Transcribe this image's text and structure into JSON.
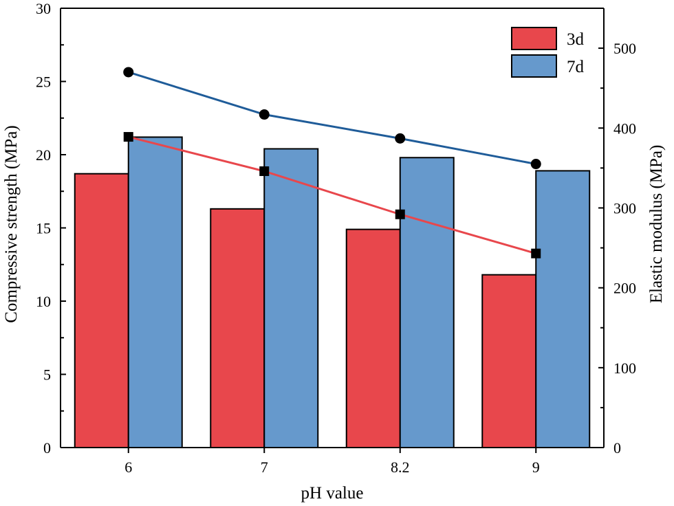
{
  "chart_data": {
    "type": "bar",
    "title": "",
    "categories": [
      "6",
      "7",
      "8.2",
      "9"
    ],
    "xlabel": "pH value",
    "ylabel": "Compressive strength (MPa)",
    "y2label": "Elastic modulus (MPa)",
    "ylim": [
      0,
      30
    ],
    "yticks": [
      "0",
      "5",
      "10",
      "15",
      "20",
      "25",
      "30"
    ],
    "y2lim": [
      0,
      550
    ],
    "y2ticks": [
      "0",
      "100",
      "200",
      "300",
      "400",
      "500"
    ],
    "grid": false,
    "legend_position": "top-right",
    "series": [
      {
        "name": "3d",
        "kind": "bar",
        "axis": "left",
        "color": "#E8474C",
        "values": [
          18.7,
          16.3,
          14.9,
          11.8
        ]
      },
      {
        "name": "7d",
        "kind": "bar",
        "axis": "left",
        "color": "#6699CC",
        "values": [
          21.2,
          20.4,
          19.8,
          18.9
        ]
      }
    ],
    "lines": [
      {
        "kind": "line",
        "axis": "right",
        "color": "#E8474C",
        "marker": "square",
        "values": [
          389,
          346,
          292,
          243
        ]
      },
      {
        "kind": "line",
        "axis": "right",
        "color": "#1F5C99",
        "marker": "circle",
        "values": [
          470,
          417,
          387,
          355
        ]
      }
    ]
  }
}
